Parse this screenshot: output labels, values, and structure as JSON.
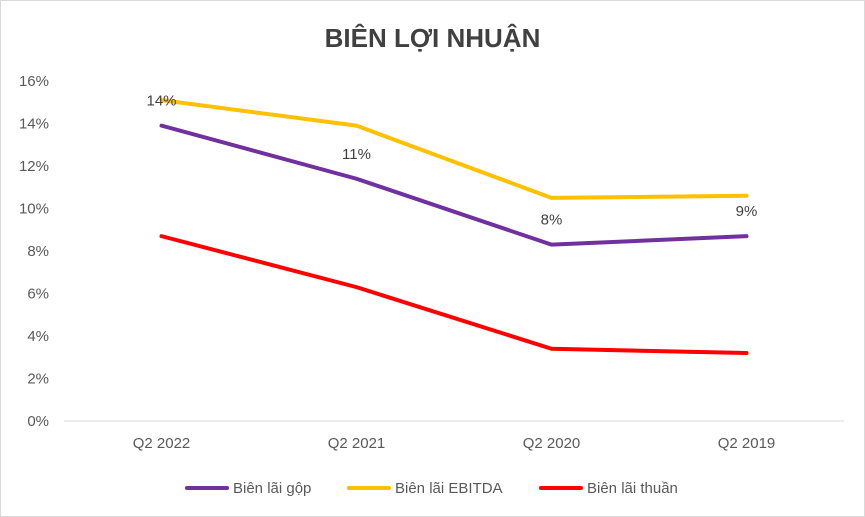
{
  "chart_data": {
    "type": "line",
    "title": "BIÊN LỢI NHUẬN",
    "xlabel": "",
    "ylabel": "",
    "categories": [
      "Q2 2022",
      "Q2 2021",
      "Q2 2020",
      "Q2 2019"
    ],
    "ylim": [
      0,
      0.16
    ],
    "yticks": [
      0,
      0.02,
      0.04,
      0.06,
      0.08,
      0.1,
      0.12,
      0.14,
      0.16
    ],
    "ytick_labels": [
      "0%",
      "2%",
      "4%",
      "6%",
      "8%",
      "10%",
      "12%",
      "14%",
      "16%"
    ],
    "grid": false,
    "legend_position": "bottom",
    "series": [
      {
        "name": "Biên lãi gộp",
        "color": "#7030a0",
        "values": [
          0.139,
          0.114,
          0.083,
          0.087
        ]
      },
      {
        "name": "Biên lãi EBITDA",
        "color": "#ffc000",
        "values": [
          0.151,
          0.139,
          0.105,
          0.106
        ]
      },
      {
        "name": "Biên lãi thuần",
        "color": "#ff0000",
        "values": [
          0.087,
          0.063,
          0.034,
          0.032
        ]
      }
    ],
    "data_labels": [
      {
        "series": 0,
        "index": 0,
        "text": "14%"
      },
      {
        "series": 0,
        "index": 1,
        "text": "11%"
      },
      {
        "series": 0,
        "index": 2,
        "text": "8%"
      },
      {
        "series": 0,
        "index": 3,
        "text": "9%"
      }
    ]
  }
}
